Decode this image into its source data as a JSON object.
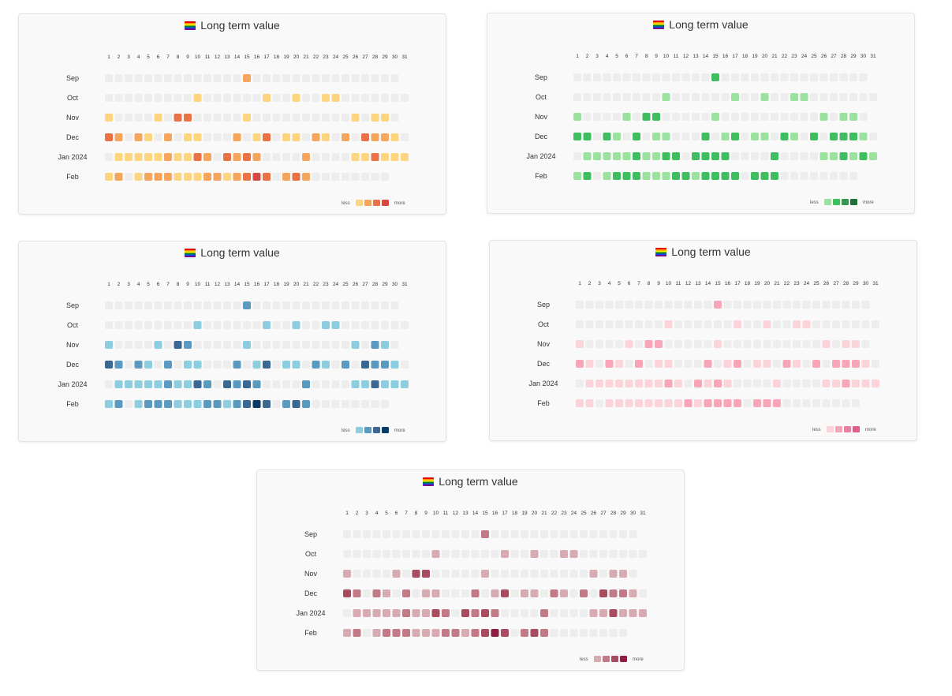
{
  "labels": {
    "title": "Long term value",
    "legend_less": "less",
    "legend_more": "more"
  },
  "chart_data": [
    {
      "type": "heatmap",
      "title": "Long term value",
      "x": [
        "1",
        "2",
        "3",
        "4",
        "5",
        "6",
        "7",
        "8",
        "9",
        "10",
        "11",
        "12",
        "13",
        "14",
        "15",
        "16",
        "17",
        "18",
        "19",
        "20",
        "21",
        "22",
        "23",
        "24",
        "25",
        "26",
        "27",
        "28",
        "29",
        "30",
        "31"
      ],
      "y": [
        "Sep",
        "Oct",
        "Nov",
        "Dec",
        "Jan 2024",
        "Feb"
      ],
      "days_in_month": [
        30,
        31,
        30,
        31,
        31,
        29
      ],
      "levels": [
        [
          0,
          0,
          0,
          0,
          0,
          0,
          0,
          0,
          0,
          0,
          0,
          0,
          0,
          0,
          2,
          0,
          0,
          0,
          0,
          0,
          0,
          0,
          0,
          0,
          0,
          0,
          0,
          0,
          0,
          0
        ],
        [
          0,
          0,
          0,
          0,
          0,
          0,
          0,
          0,
          0,
          1,
          0,
          0,
          0,
          0,
          0,
          0,
          1,
          0,
          0,
          1,
          0,
          0,
          1,
          1,
          0,
          0,
          0,
          0,
          0,
          0,
          0
        ],
        [
          1,
          0,
          0,
          0,
          0,
          1,
          0,
          3,
          3,
          0,
          0,
          0,
          0,
          0,
          1,
          0,
          0,
          0,
          0,
          0,
          0,
          0,
          0,
          0,
          0,
          1,
          0,
          1,
          1,
          0
        ],
        [
          3,
          2,
          0,
          2,
          1,
          0,
          2,
          0,
          1,
          1,
          0,
          0,
          0,
          2,
          0,
          1,
          3,
          0,
          1,
          1,
          0,
          2,
          1,
          0,
          2,
          0,
          3,
          2,
          2,
          1,
          0
        ],
        [
          0,
          1,
          1,
          1,
          1,
          1,
          2,
          1,
          1,
          3,
          2,
          0,
          3,
          2,
          3,
          2,
          0,
          0,
          0,
          0,
          2,
          0,
          0,
          0,
          0,
          1,
          1,
          3,
          1,
          1,
          1
        ],
        [
          1,
          2,
          0,
          1,
          2,
          2,
          2,
          1,
          1,
          1,
          2,
          2,
          1,
          2,
          3,
          4,
          3,
          0,
          2,
          3,
          2,
          0,
          0,
          0,
          0,
          0,
          0,
          0,
          0
        ]
      ],
      "legend": "bottom-right",
      "palette": [
        "#ededed",
        "#fdd57e",
        "#f6a55c",
        "#ea7245",
        "#d4493f"
      ]
    },
    {
      "type": "heatmap",
      "title": "Long term value",
      "x": [
        "1",
        "2",
        "3",
        "4",
        "5",
        "6",
        "7",
        "8",
        "9",
        "10",
        "11",
        "12",
        "13",
        "14",
        "15",
        "16",
        "17",
        "18",
        "19",
        "20",
        "21",
        "22",
        "23",
        "24",
        "25",
        "26",
        "27",
        "28",
        "29",
        "30",
        "31"
      ],
      "y": [
        "Sep",
        "Oct",
        "Nov",
        "Dec",
        "Jan 2024",
        "Feb"
      ],
      "days_in_month": [
        30,
        31,
        30,
        31,
        31,
        29
      ],
      "levels": [
        [
          0,
          0,
          0,
          0,
          0,
          0,
          0,
          0,
          0,
          0,
          0,
          0,
          0,
          0,
          2,
          0,
          0,
          0,
          0,
          0,
          0,
          0,
          0,
          0,
          0,
          0,
          0,
          0,
          0,
          0
        ],
        [
          0,
          0,
          0,
          0,
          0,
          0,
          0,
          0,
          0,
          1,
          0,
          0,
          0,
          0,
          0,
          0,
          1,
          0,
          0,
          1,
          0,
          0,
          1,
          1,
          0,
          0,
          0,
          0,
          0,
          0,
          0
        ],
        [
          1,
          0,
          0,
          0,
          0,
          1,
          0,
          2,
          2,
          0,
          0,
          0,
          0,
          0,
          1,
          0,
          0,
          0,
          0,
          0,
          0,
          0,
          0,
          0,
          0,
          1,
          0,
          1,
          1,
          0
        ],
        [
          2,
          2,
          0,
          2,
          1,
          0,
          2,
          0,
          1,
          1,
          0,
          0,
          0,
          2,
          0,
          1,
          2,
          0,
          1,
          1,
          0,
          2,
          1,
          0,
          2,
          0,
          2,
          2,
          2,
          1,
          0
        ],
        [
          0,
          1,
          1,
          1,
          1,
          1,
          2,
          1,
          1,
          2,
          2,
          0,
          2,
          2,
          2,
          2,
          0,
          0,
          0,
          0,
          2,
          0,
          0,
          0,
          0,
          1,
          1,
          2,
          1,
          2,
          1
        ],
        [
          1,
          2,
          0,
          1,
          2,
          2,
          2,
          1,
          1,
          1,
          2,
          2,
          1,
          2,
          2,
          2,
          2,
          0,
          2,
          2,
          2,
          0,
          0,
          0,
          0,
          0,
          0,
          0,
          0
        ]
      ],
      "legend": "bottom-right",
      "palette": [
        "#ededed",
        "#9be29e",
        "#3fbe5f",
        "#2f9b4b",
        "#216e39"
      ]
    },
    {
      "type": "heatmap",
      "title": "Long term value",
      "x": [
        "1",
        "2",
        "3",
        "4",
        "5",
        "6",
        "7",
        "8",
        "9",
        "10",
        "11",
        "12",
        "13",
        "14",
        "15",
        "16",
        "17",
        "18",
        "19",
        "20",
        "21",
        "22",
        "23",
        "24",
        "25",
        "26",
        "27",
        "28",
        "29",
        "30",
        "31"
      ],
      "y": [
        "Sep",
        "Oct",
        "Nov",
        "Dec",
        "Jan 2024",
        "Feb"
      ],
      "days_in_month": [
        30,
        31,
        30,
        31,
        31,
        29
      ],
      "levels": [
        [
          0,
          0,
          0,
          0,
          0,
          0,
          0,
          0,
          0,
          0,
          0,
          0,
          0,
          0,
          2,
          0,
          0,
          0,
          0,
          0,
          0,
          0,
          0,
          0,
          0,
          0,
          0,
          0,
          0,
          0
        ],
        [
          0,
          0,
          0,
          0,
          0,
          0,
          0,
          0,
          0,
          1,
          0,
          0,
          0,
          0,
          0,
          0,
          1,
          0,
          0,
          1,
          0,
          0,
          1,
          1,
          0,
          0,
          0,
          0,
          0,
          0,
          0
        ],
        [
          1,
          0,
          0,
          0,
          0,
          1,
          0,
          3,
          2,
          0,
          0,
          0,
          0,
          0,
          1,
          0,
          0,
          0,
          0,
          0,
          0,
          0,
          0,
          0,
          0,
          1,
          0,
          2,
          1,
          0
        ],
        [
          3,
          2,
          0,
          2,
          1,
          0,
          2,
          0,
          1,
          1,
          0,
          0,
          0,
          2,
          0,
          1,
          3,
          0,
          1,
          1,
          0,
          2,
          1,
          0,
          2,
          0,
          3,
          2,
          2,
          1,
          0
        ],
        [
          0,
          1,
          1,
          1,
          1,
          1,
          2,
          1,
          1,
          3,
          2,
          0,
          3,
          2,
          3,
          2,
          0,
          0,
          0,
          0,
          2,
          0,
          0,
          0,
          0,
          1,
          1,
          3,
          1,
          1,
          1
        ],
        [
          1,
          2,
          0,
          1,
          2,
          2,
          2,
          1,
          1,
          1,
          2,
          2,
          1,
          2,
          3,
          4,
          3,
          0,
          2,
          3,
          2,
          0,
          0,
          0,
          0,
          0,
          0,
          0,
          0
        ]
      ],
      "legend": "bottom-right",
      "palette": [
        "#ededed",
        "#8dcde0",
        "#5a9ac1",
        "#3a6893",
        "#0b3a66"
      ]
    },
    {
      "type": "heatmap",
      "title": "Long term value",
      "x": [
        "1",
        "2",
        "3",
        "4",
        "5",
        "6",
        "7",
        "8",
        "9",
        "10",
        "11",
        "12",
        "13",
        "14",
        "15",
        "16",
        "17",
        "18",
        "19",
        "20",
        "21",
        "22",
        "23",
        "24",
        "25",
        "26",
        "27",
        "28",
        "29",
        "30",
        "31"
      ],
      "y": [
        "Sep",
        "Oct",
        "Nov",
        "Dec",
        "Jan 2024",
        "Feb"
      ],
      "days_in_month": [
        30,
        31,
        30,
        31,
        31,
        29
      ],
      "levels": [
        [
          0,
          0,
          0,
          0,
          0,
          0,
          0,
          0,
          0,
          0,
          0,
          0,
          0,
          0,
          2,
          0,
          0,
          0,
          0,
          0,
          0,
          0,
          0,
          0,
          0,
          0,
          0,
          0,
          0,
          0
        ],
        [
          0,
          0,
          0,
          0,
          0,
          0,
          0,
          0,
          0,
          1,
          0,
          0,
          0,
          0,
          0,
          0,
          1,
          0,
          0,
          1,
          0,
          0,
          1,
          1,
          0,
          0,
          0,
          0,
          0,
          0,
          0
        ],
        [
          1,
          0,
          0,
          0,
          0,
          1,
          0,
          2,
          2,
          0,
          0,
          0,
          0,
          0,
          1,
          0,
          0,
          0,
          0,
          0,
          0,
          0,
          0,
          0,
          0,
          1,
          0,
          1,
          1,
          0
        ],
        [
          2,
          1,
          0,
          2,
          1,
          0,
          2,
          0,
          1,
          1,
          0,
          0,
          0,
          2,
          0,
          1,
          2,
          0,
          1,
          1,
          0,
          2,
          1,
          0,
          2,
          0,
          2,
          2,
          2,
          1,
          0
        ],
        [
          0,
          1,
          1,
          1,
          1,
          1,
          1,
          1,
          1,
          2,
          1,
          0,
          2,
          1,
          2,
          1,
          0,
          0,
          0,
          0,
          1,
          0,
          0,
          0,
          0,
          1,
          1,
          2,
          1,
          1,
          1
        ],
        [
          1,
          1,
          0,
          1,
          1,
          1,
          1,
          1,
          1,
          1,
          1,
          2,
          1,
          2,
          2,
          2,
          2,
          0,
          2,
          2,
          2,
          0,
          0,
          0,
          0,
          0,
          0,
          0,
          0
        ]
      ],
      "legend": "bottom-right",
      "palette": [
        "#ededed",
        "#fcd3d9",
        "#f8a6b7",
        "#ef7fa0",
        "#e35d88"
      ]
    },
    {
      "type": "heatmap",
      "title": "Long term value",
      "x": [
        "1",
        "2",
        "3",
        "4",
        "5",
        "6",
        "7",
        "8",
        "9",
        "10",
        "11",
        "12",
        "13",
        "14",
        "15",
        "16",
        "17",
        "18",
        "19",
        "20",
        "21",
        "22",
        "23",
        "24",
        "25",
        "26",
        "27",
        "28",
        "29",
        "30",
        "31"
      ],
      "y": [
        "Sep",
        "Oct",
        "Nov",
        "Dec",
        "Jan 2024",
        "Feb"
      ],
      "days_in_month": [
        30,
        31,
        30,
        31,
        31,
        29
      ],
      "levels": [
        [
          0,
          0,
          0,
          0,
          0,
          0,
          0,
          0,
          0,
          0,
          0,
          0,
          0,
          0,
          2,
          0,
          0,
          0,
          0,
          0,
          0,
          0,
          0,
          0,
          0,
          0,
          0,
          0,
          0,
          0
        ],
        [
          0,
          0,
          0,
          0,
          0,
          0,
          0,
          0,
          0,
          1,
          0,
          0,
          0,
          0,
          0,
          0,
          1,
          0,
          0,
          1,
          0,
          0,
          1,
          1,
          0,
          0,
          0,
          0,
          0,
          0,
          0
        ],
        [
          1,
          0,
          0,
          0,
          0,
          1,
          0,
          3,
          3,
          0,
          0,
          0,
          0,
          0,
          1,
          0,
          0,
          0,
          0,
          0,
          0,
          0,
          0,
          0,
          0,
          1,
          0,
          1,
          1,
          0
        ],
        [
          3,
          2,
          0,
          2,
          1,
          0,
          2,
          0,
          1,
          1,
          0,
          0,
          0,
          2,
          0,
          1,
          3,
          0,
          1,
          1,
          0,
          2,
          1,
          0,
          2,
          0,
          3,
          2,
          2,
          1,
          0
        ],
        [
          0,
          1,
          1,
          1,
          1,
          1,
          2,
          1,
          1,
          3,
          2,
          0,
          3,
          2,
          3,
          2,
          0,
          0,
          0,
          0,
          2,
          0,
          0,
          0,
          0,
          1,
          1,
          3,
          1,
          1,
          1
        ],
        [
          1,
          2,
          0,
          1,
          2,
          2,
          2,
          1,
          1,
          1,
          2,
          2,
          1,
          2,
          3,
          4,
          3,
          0,
          2,
          3,
          2,
          0,
          0,
          0,
          0,
          0,
          0,
          0,
          0
        ]
      ],
      "legend": "bottom-right",
      "palette": [
        "#ededed",
        "#d8aab1",
        "#c17a86",
        "#aa4c60",
        "#8c1e43"
      ]
    }
  ]
}
